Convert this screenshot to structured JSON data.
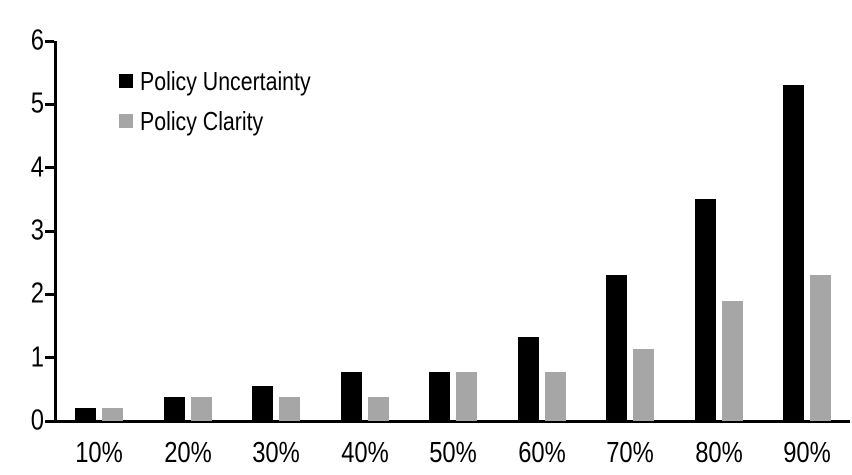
{
  "chart_data": {
    "type": "bar",
    "title": "",
    "xlabel": "",
    "ylabel": "",
    "categories": [
      "10%",
      "20%",
      "30%",
      "40%",
      "50%",
      "60%",
      "70%",
      "80%",
      "90%"
    ],
    "series": [
      {
        "name": "Policy Uncertainty",
        "color": "#000000",
        "values": [
          0.2,
          0.38,
          0.56,
          0.77,
          0.77,
          1.33,
          2.3,
          3.5,
          5.3
        ]
      },
      {
        "name": "Policy Clarity",
        "color": "#a6a6a6",
        "values": [
          0.2,
          0.38,
          0.38,
          0.38,
          0.77,
          0.77,
          1.13,
          1.9,
          2.3
        ]
      }
    ],
    "ylim": [
      0,
      6
    ],
    "yticks": [
      0,
      1,
      2,
      3,
      4,
      5,
      6
    ],
    "grid": false,
    "legend_position": "top-left",
    "background": "#ffffff",
    "axis_color": "#000000"
  }
}
